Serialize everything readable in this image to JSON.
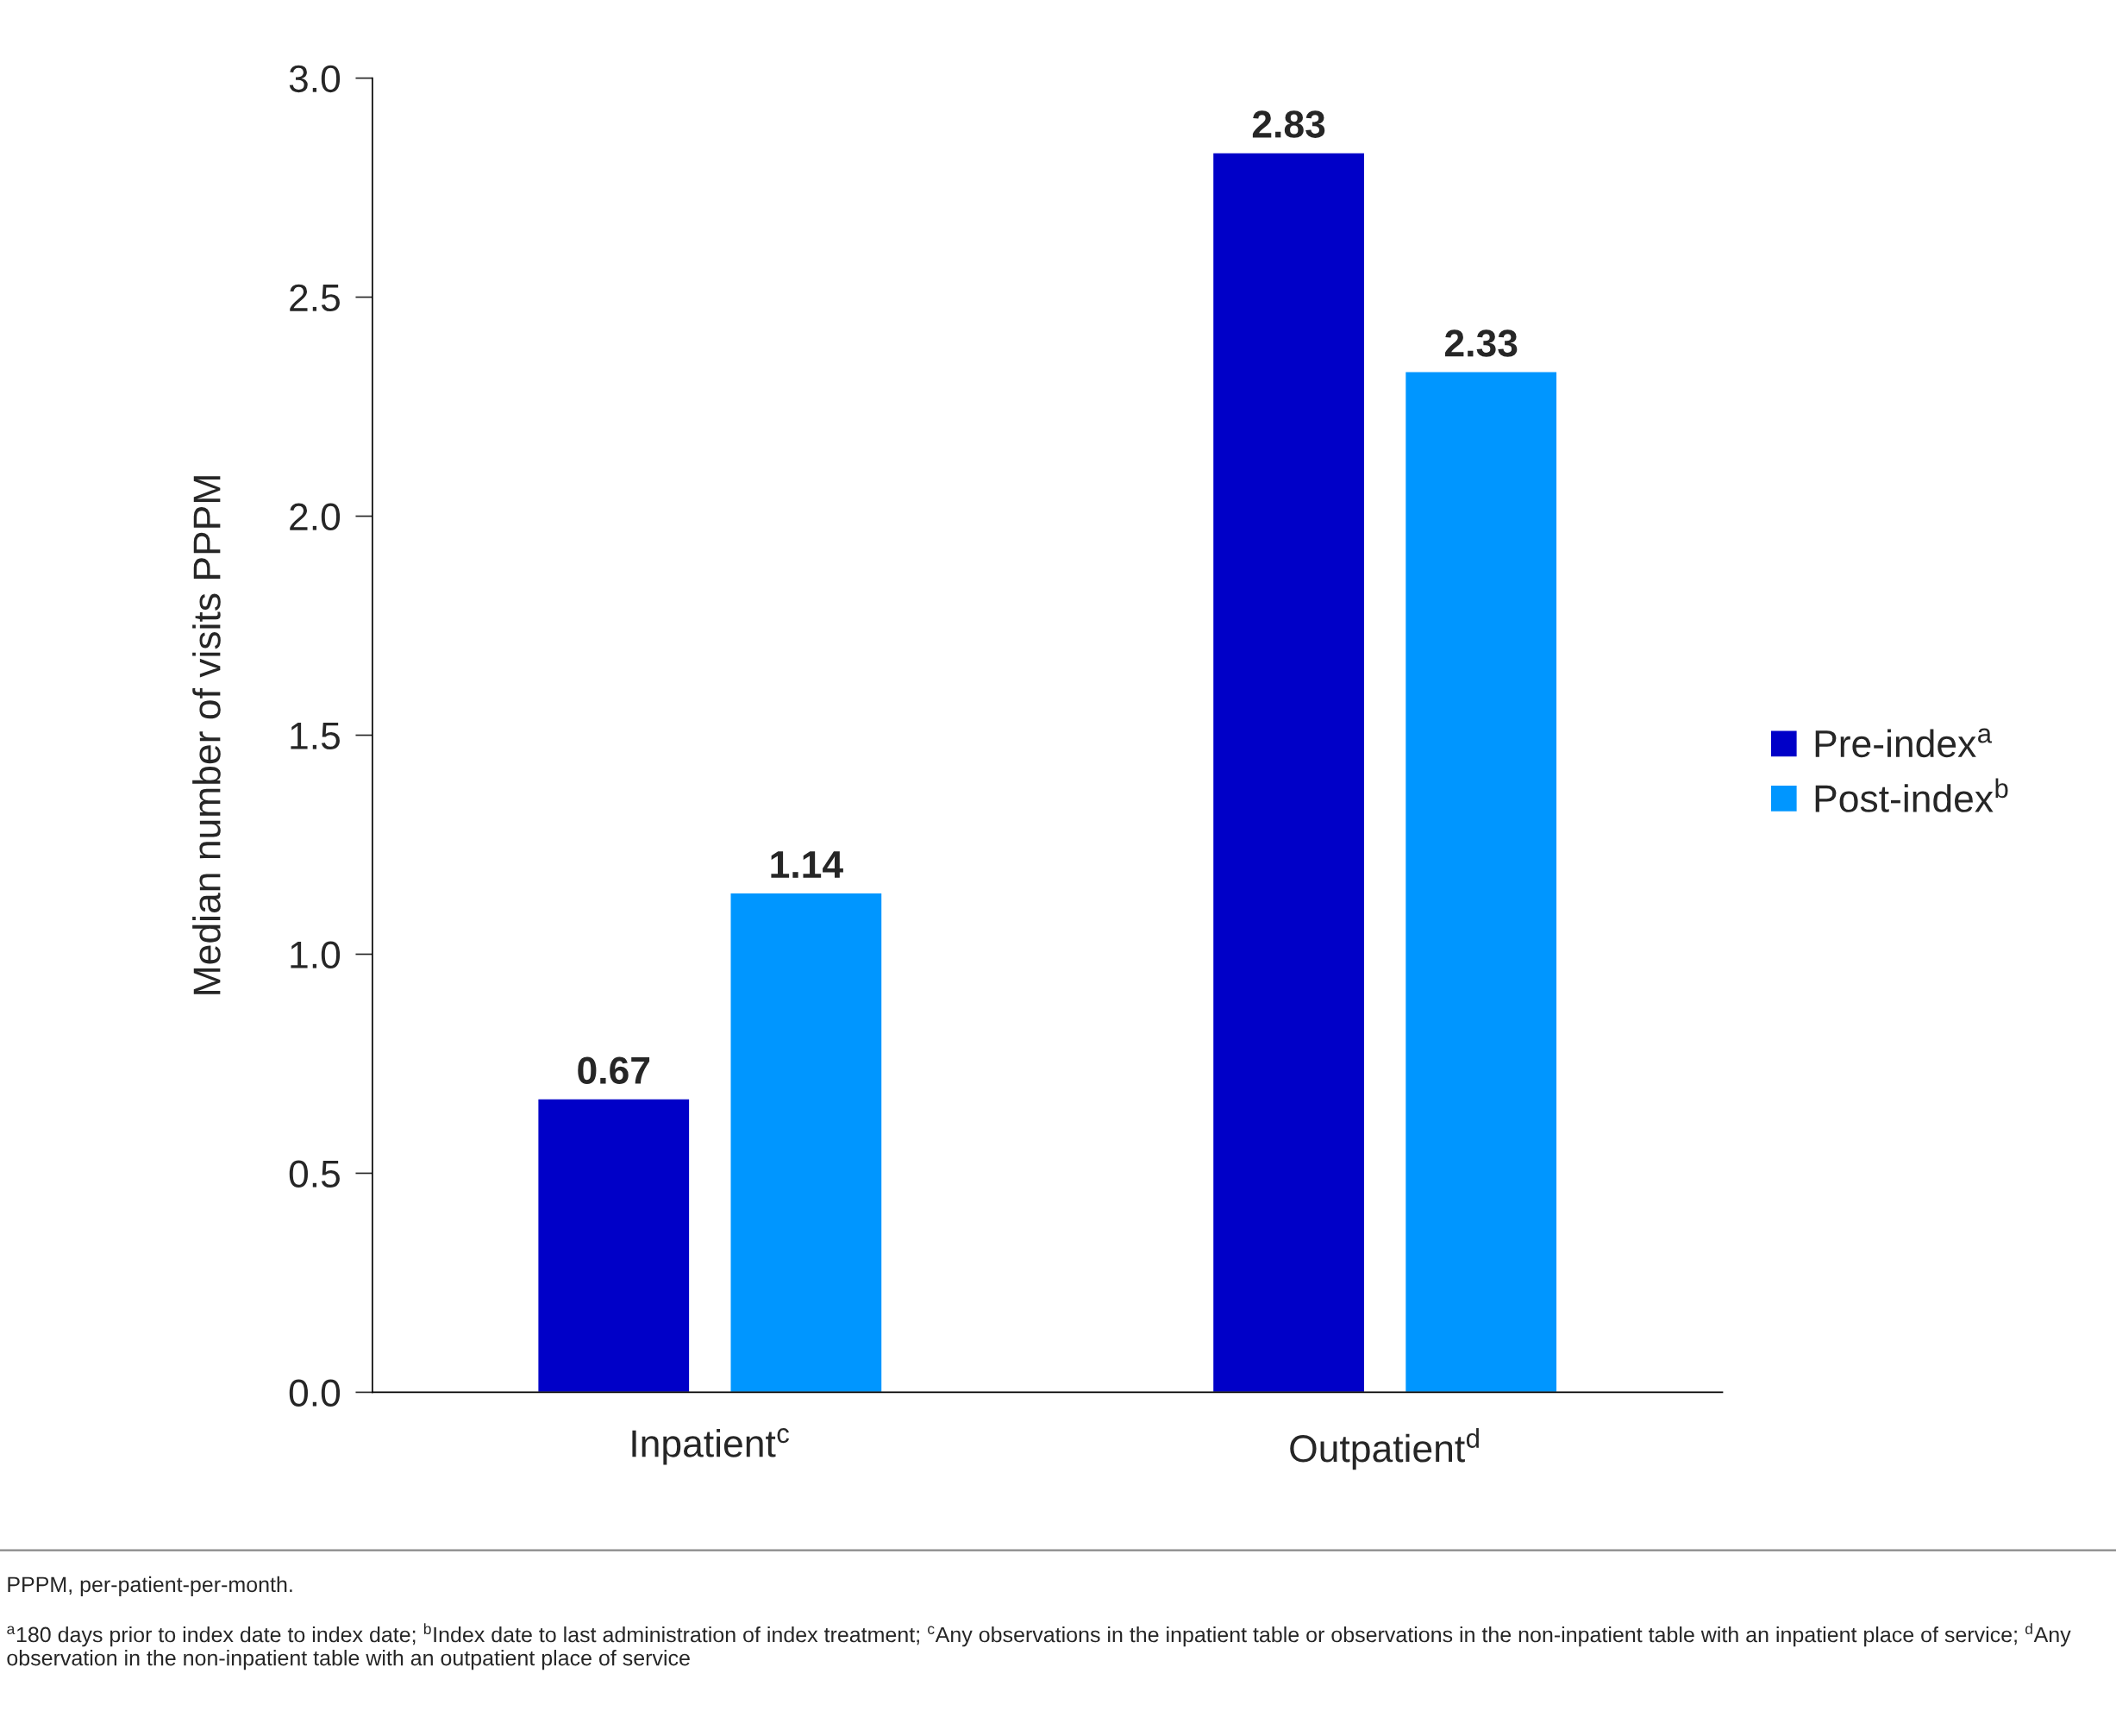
{
  "chart_data": {
    "type": "bar",
    "ylabel": "Median number of visits PPPM",
    "categories": [
      "Inpatient$^{c}$",
      "Outpatient$^{d}$"
    ],
    "series": [
      {
        "name": "Pre-index$^{a}$",
        "color": "#0000c8",
        "values": [
          0.67,
          2.83
        ]
      },
      {
        "name": "Post-index$^{b}$",
        "color": "#0096ff",
        "values": [
          1.14,
          2.33
        ]
      }
    ],
    "ylim": [
      0,
      3.0
    ],
    "yticks": [
      "0.0",
      "0.5",
      "1.0",
      "1.5",
      "2.0",
      "2.5",
      "3.0"
    ],
    "data_labels": true,
    "legend": "right",
    "grid": false,
    "annotations": [
      "PPPM, per-patient-per-month.",
      "$^{a}$180 days prior to index date to index date; $^{b}$Index date to last administration of index treatment; $^{c}$Any observations in the inpatient table or observations in the non-inpatient table with an inpatient place of service; $^{d}$Any observation in the non-inpatient table with an outpatient place of service"
    ]
  }
}
